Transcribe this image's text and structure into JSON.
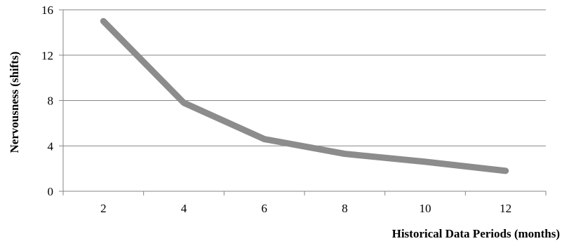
{
  "chart_data": {
    "type": "line",
    "title": "",
    "xlabel": "Historical Data Periods (months)",
    "ylabel": "Nervousness (shifts)",
    "x": [
      2,
      4,
      6,
      8,
      10,
      12
    ],
    "series": [
      {
        "values": [
          15.0,
          7.8,
          4.6,
          3.3,
          2.6,
          1.8
        ]
      }
    ],
    "xlim": [
      1,
      13
    ],
    "ylim": [
      0,
      16
    ],
    "yticks": [
      0,
      4,
      8,
      12,
      16
    ],
    "xticks": [
      2,
      4,
      6,
      8,
      10,
      12
    ],
    "grid": "horizontal",
    "legend": "none",
    "colors": {
      "line": "#8c8c8c",
      "grid": "#868686",
      "axis": "#868686"
    }
  }
}
